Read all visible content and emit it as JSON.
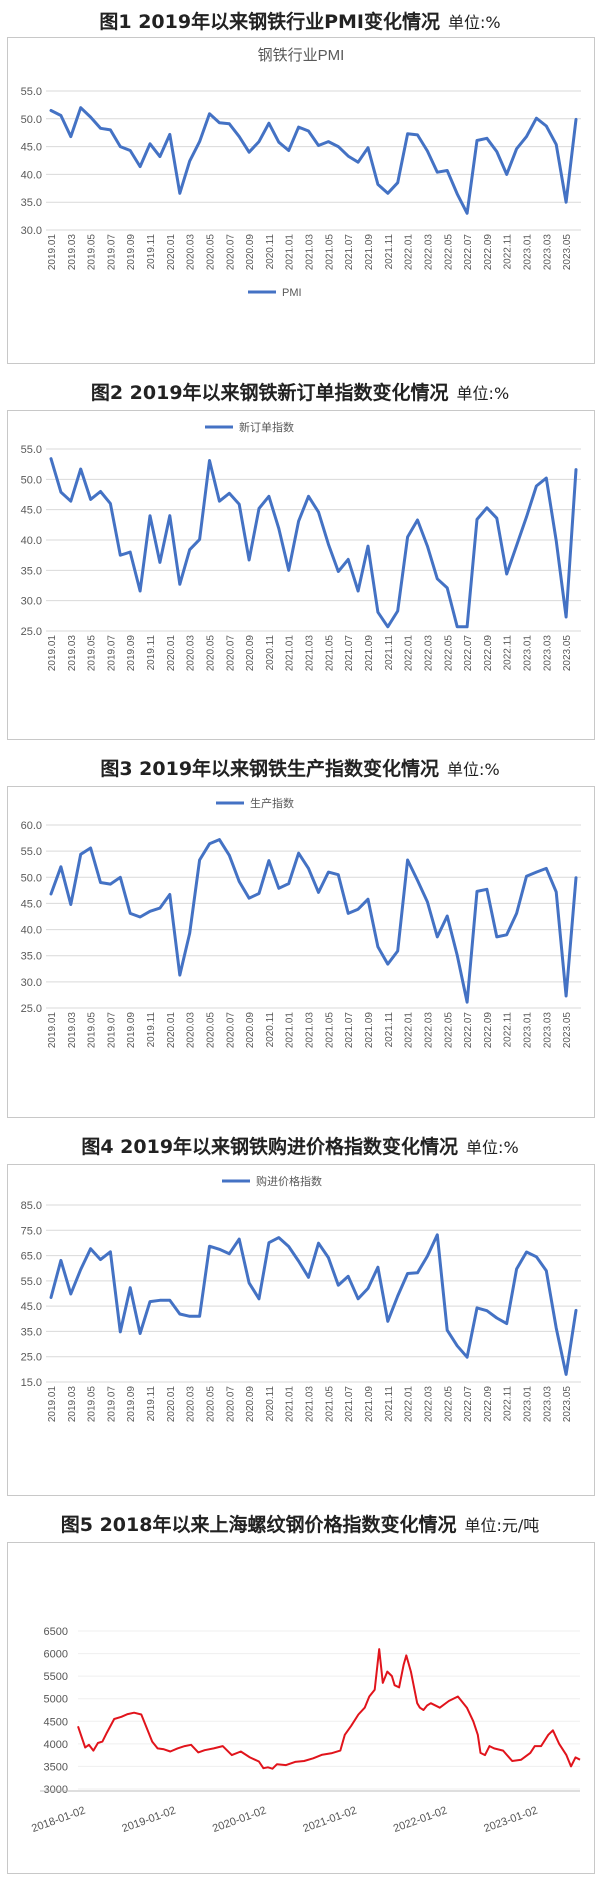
{
  "chart_data": [
    {
      "type": "line",
      "fig_label": "图1  2019年以来钢铁行业PMI变化情况",
      "unit": "单位:%",
      "title": "钢铁行业PMI",
      "legend": [
        "PMI"
      ],
      "legend_position": "bottom",
      "color": "#4472c4",
      "ylim": [
        30,
        55
      ],
      "yticks": [
        "30.0",
        "35.0",
        "40.0",
        "45.0",
        "50.0",
        "55.0"
      ],
      "xticks": [
        "2019.01",
        "2019.03",
        "2019.05",
        "2019.07",
        "2019.09",
        "2019.11",
        "2020.01",
        "2020.03",
        "2020.05",
        "2020.07",
        "2020.09",
        "2020.11",
        "2021.01",
        "2021.03",
        "2021.05",
        "2021.07",
        "2021.09",
        "2021.11",
        "2022.01",
        "2022.03",
        "2022.05",
        "2022.07",
        "2022.09",
        "2022.11",
        "2023.01",
        "2023.03",
        "2023.05"
      ],
      "values": [
        51.5,
        50.6,
        46.8,
        52.0,
        50.3,
        48.3,
        48.0,
        45.0,
        44.3,
        41.4,
        45.5,
        43.2,
        47.2,
        36.6,
        42.4,
        45.9,
        50.9,
        49.3,
        49.1,
        46.8,
        44.0,
        45.9,
        49.2,
        45.8,
        44.3,
        48.5,
        47.8,
        45.2,
        45.9,
        45.0,
        43.3,
        42.2,
        44.8,
        38.2,
        36.6,
        38.5,
        47.3,
        47.1,
        44.2,
        40.4,
        40.7,
        36.5,
        33.0,
        46.1,
        46.5,
        44.1,
        40.0,
        44.6,
        46.8,
        50.1,
        48.7,
        45.4,
        35.0,
        49.9
      ]
    },
    {
      "type": "line",
      "fig_label": "图2  2019年以来钢铁新订单指数变化情况",
      "unit": "单位:%",
      "legend": [
        "新订单指数"
      ],
      "legend_position": "top",
      "color": "#4472c4",
      "ylim": [
        25,
        55
      ],
      "yticks": [
        "25.0",
        "30.0",
        "35.0",
        "40.0",
        "45.0",
        "50.0",
        "55.0"
      ],
      "xticks": [
        "2019.01",
        "2019.03",
        "2019.05",
        "2019.07",
        "2019.09",
        "2019.11",
        "2020.01",
        "2020.03",
        "2020.05",
        "2020.07",
        "2020.09",
        "2020.11",
        "2021.01",
        "2021.03",
        "2021.05",
        "2021.07",
        "2021.09",
        "2021.11",
        "2022.01",
        "2022.03",
        "2022.05",
        "2022.07",
        "2022.09",
        "2022.11",
        "2023.01",
        "2023.03",
        "2023.05"
      ],
      "values": [
        53.4,
        47.9,
        46.4,
        51.7,
        46.7,
        48.0,
        46.0,
        37.5,
        38.0,
        31.6,
        44.0,
        36.3,
        44.0,
        32.7,
        38.4,
        40.1,
        53.1,
        46.4,
        47.7,
        45.9,
        36.7,
        45.2,
        47.2,
        41.9,
        35.0,
        43.1,
        47.2,
        44.6,
        39.3,
        34.8,
        36.8,
        31.6,
        39.0,
        28.1,
        25.7,
        28.3,
        40.5,
        43.3,
        39.0,
        33.6,
        32.1,
        25.7,
        25.7,
        43.4,
        45.3,
        43.6,
        34.4,
        39.1,
        43.8,
        48.9,
        50.2,
        39.9,
        27.3,
        51.6
      ]
    },
    {
      "type": "line",
      "fig_label": "图3  2019年以来钢铁生产指数变化情况",
      "unit": "单位:%",
      "legend": [
        "生产指数"
      ],
      "legend_position": "top",
      "color": "#4472c4",
      "ylim": [
        25,
        60
      ],
      "yticks": [
        "25.0",
        "30.0",
        "35.0",
        "40.0",
        "45.0",
        "50.0",
        "55.0",
        "60.0"
      ],
      "xticks": [
        "2019.01",
        "2019.03",
        "2019.05",
        "2019.07",
        "2019.09",
        "2019.11",
        "2020.01",
        "2020.03",
        "2020.05",
        "2020.07",
        "2020.09",
        "2020.11",
        "2021.01",
        "2021.03",
        "2021.05",
        "2021.07",
        "2021.09",
        "2021.11",
        "2022.01",
        "2022.03",
        "2022.05",
        "2022.07",
        "2022.09",
        "2022.11",
        "2023.01",
        "2023.03",
        "2023.05"
      ],
      "values": [
        46.8,
        52.0,
        44.8,
        54.4,
        55.6,
        49.0,
        48.7,
        50.0,
        43.1,
        42.4,
        43.5,
        44.1,
        46.7,
        31.3,
        39.3,
        53.3,
        56.4,
        57.2,
        54.2,
        49.2,
        46.0,
        46.9,
        53.2,
        47.9,
        48.8,
        54.6,
        51.7,
        47.1,
        51.0,
        50.5,
        43.1,
        43.9,
        45.8,
        36.7,
        33.4,
        35.9,
        53.3,
        49.4,
        45.3,
        38.6,
        42.6,
        35.1,
        26.1,
        47.3,
        47.7,
        38.6,
        39.0,
        43.1,
        50.2,
        51.0,
        51.7,
        47.2,
        27.3,
        49.9
      ]
    },
    {
      "type": "line",
      "fig_label": "图4  2019年以来钢铁购进价格指数变化情况",
      "unit": "单位:%",
      "legend": [
        "购进价格指数"
      ],
      "legend_position": "top",
      "color": "#4472c4",
      "ylim": [
        15,
        85
      ],
      "yticks": [
        "15.0",
        "25.0",
        "35.0",
        "45.0",
        "55.0",
        "65.0",
        "75.0",
        "85.0"
      ],
      "xticks": [
        "2019.01",
        "2019.03",
        "2019.05",
        "2019.07",
        "2019.09",
        "2019.11",
        "2020.01",
        "2020.03",
        "2020.05",
        "2020.07",
        "2020.09",
        "2020.11",
        "2021.01",
        "2021.03",
        "2021.05",
        "2021.07",
        "2021.09",
        "2021.11",
        "2022.01",
        "2022.03",
        "2022.05",
        "2022.07",
        "2022.09",
        "2022.11",
        "2023.01",
        "2023.03",
        "2023.05"
      ],
      "values": [
        48.4,
        63.1,
        49.8,
        59.5,
        67.7,
        63.4,
        66.5,
        34.8,
        52.3,
        34.2,
        46.8,
        47.3,
        47.3,
        41.9,
        41.0,
        41.0,
        68.7,
        67.5,
        65.7,
        71.5,
        54.2,
        47.9,
        70.1,
        72.1,
        68.6,
        62.8,
        56.4,
        69.9,
        64.2,
        53.3,
        56.8,
        47.9,
        52.0,
        60.4,
        39.0,
        49.0,
        57.9,
        58.2,
        64.8,
        73.2,
        35.5,
        29.3,
        24.8,
        44.3,
        43.2,
        40.3,
        38.1,
        59.7,
        66.4,
        64.5,
        59.0,
        36.4,
        18.0,
        43.3
      ]
    },
    {
      "type": "line",
      "fig_label": "图5 2018年以来上海螺纹钢价格指数变化情况",
      "unit": "单位:元/吨",
      "color": "#e1141c",
      "ylim": [
        3000,
        6500
      ],
      "yticks": [
        "3000",
        "3500",
        "4000",
        "4500",
        "5000",
        "5500",
        "6000",
        "6500"
      ],
      "xticks": [
        "2018-01-02",
        "2019-01-02",
        "2020-01-02",
        "2021-01-02",
        "2022-01-02",
        "2023-01-02"
      ],
      "start_date": "2018-01-02",
      "x_years": [
        0,
        0.08,
        0.12,
        0.17,
        0.22,
        0.27,
        0.32,
        0.4,
        0.48,
        0.55,
        0.62,
        0.7,
        0.78,
        0.82,
        0.88,
        0.95,
        1.02,
        1.1,
        1.18,
        1.25,
        1.33,
        1.4,
        1.5,
        1.6,
        1.7,
        1.8,
        1.9,
        2.0,
        2.05,
        2.1,
        2.15,
        2.2,
        2.3,
        2.4,
        2.5,
        2.6,
        2.7,
        2.8,
        2.9,
        2.95,
        3.02,
        3.1,
        3.17,
        3.22,
        3.28,
        3.33,
        3.37,
        3.42,
        3.47,
        3.5,
        3.55,
        3.6,
        3.63,
        3.68,
        3.72,
        3.75,
        3.78,
        3.82,
        3.86,
        3.9,
        4.0,
        4.1,
        4.2,
        4.3,
        4.37,
        4.42,
        4.45,
        4.5,
        4.55,
        4.6,
        4.7,
        4.8,
        4.9,
        5.0,
        5.05,
        5.12,
        5.2,
        5.25,
        5.32,
        5.4,
        5.45,
        5.5,
        5.55
      ],
      "values": [
        4390,
        3920,
        3980,
        3850,
        4020,
        4050,
        4250,
        4550,
        4600,
        4660,
        4690,
        4650,
        4250,
        4050,
        3900,
        3880,
        3830,
        3900,
        3950,
        3980,
        3810,
        3860,
        3900,
        3950,
        3750,
        3830,
        3700,
        3610,
        3460,
        3480,
        3450,
        3550,
        3530,
        3600,
        3620,
        3680,
        3760,
        3790,
        3850,
        4200,
        4400,
        4650,
        4800,
        5050,
        5200,
        6100,
        5350,
        5600,
        5500,
        5300,
        5250,
        5750,
        5960,
        5600,
        5200,
        4900,
        4800,
        4750,
        4850,
        4900,
        4800,
        4950,
        5050,
        4800,
        4500,
        4200,
        3800,
        3750,
        3950,
        3900,
        3850,
        3620,
        3650,
        3800,
        3950,
        3950,
        4200,
        4300,
        4000,
        3750,
        3500,
        3700,
        3650
      ]
    }
  ]
}
